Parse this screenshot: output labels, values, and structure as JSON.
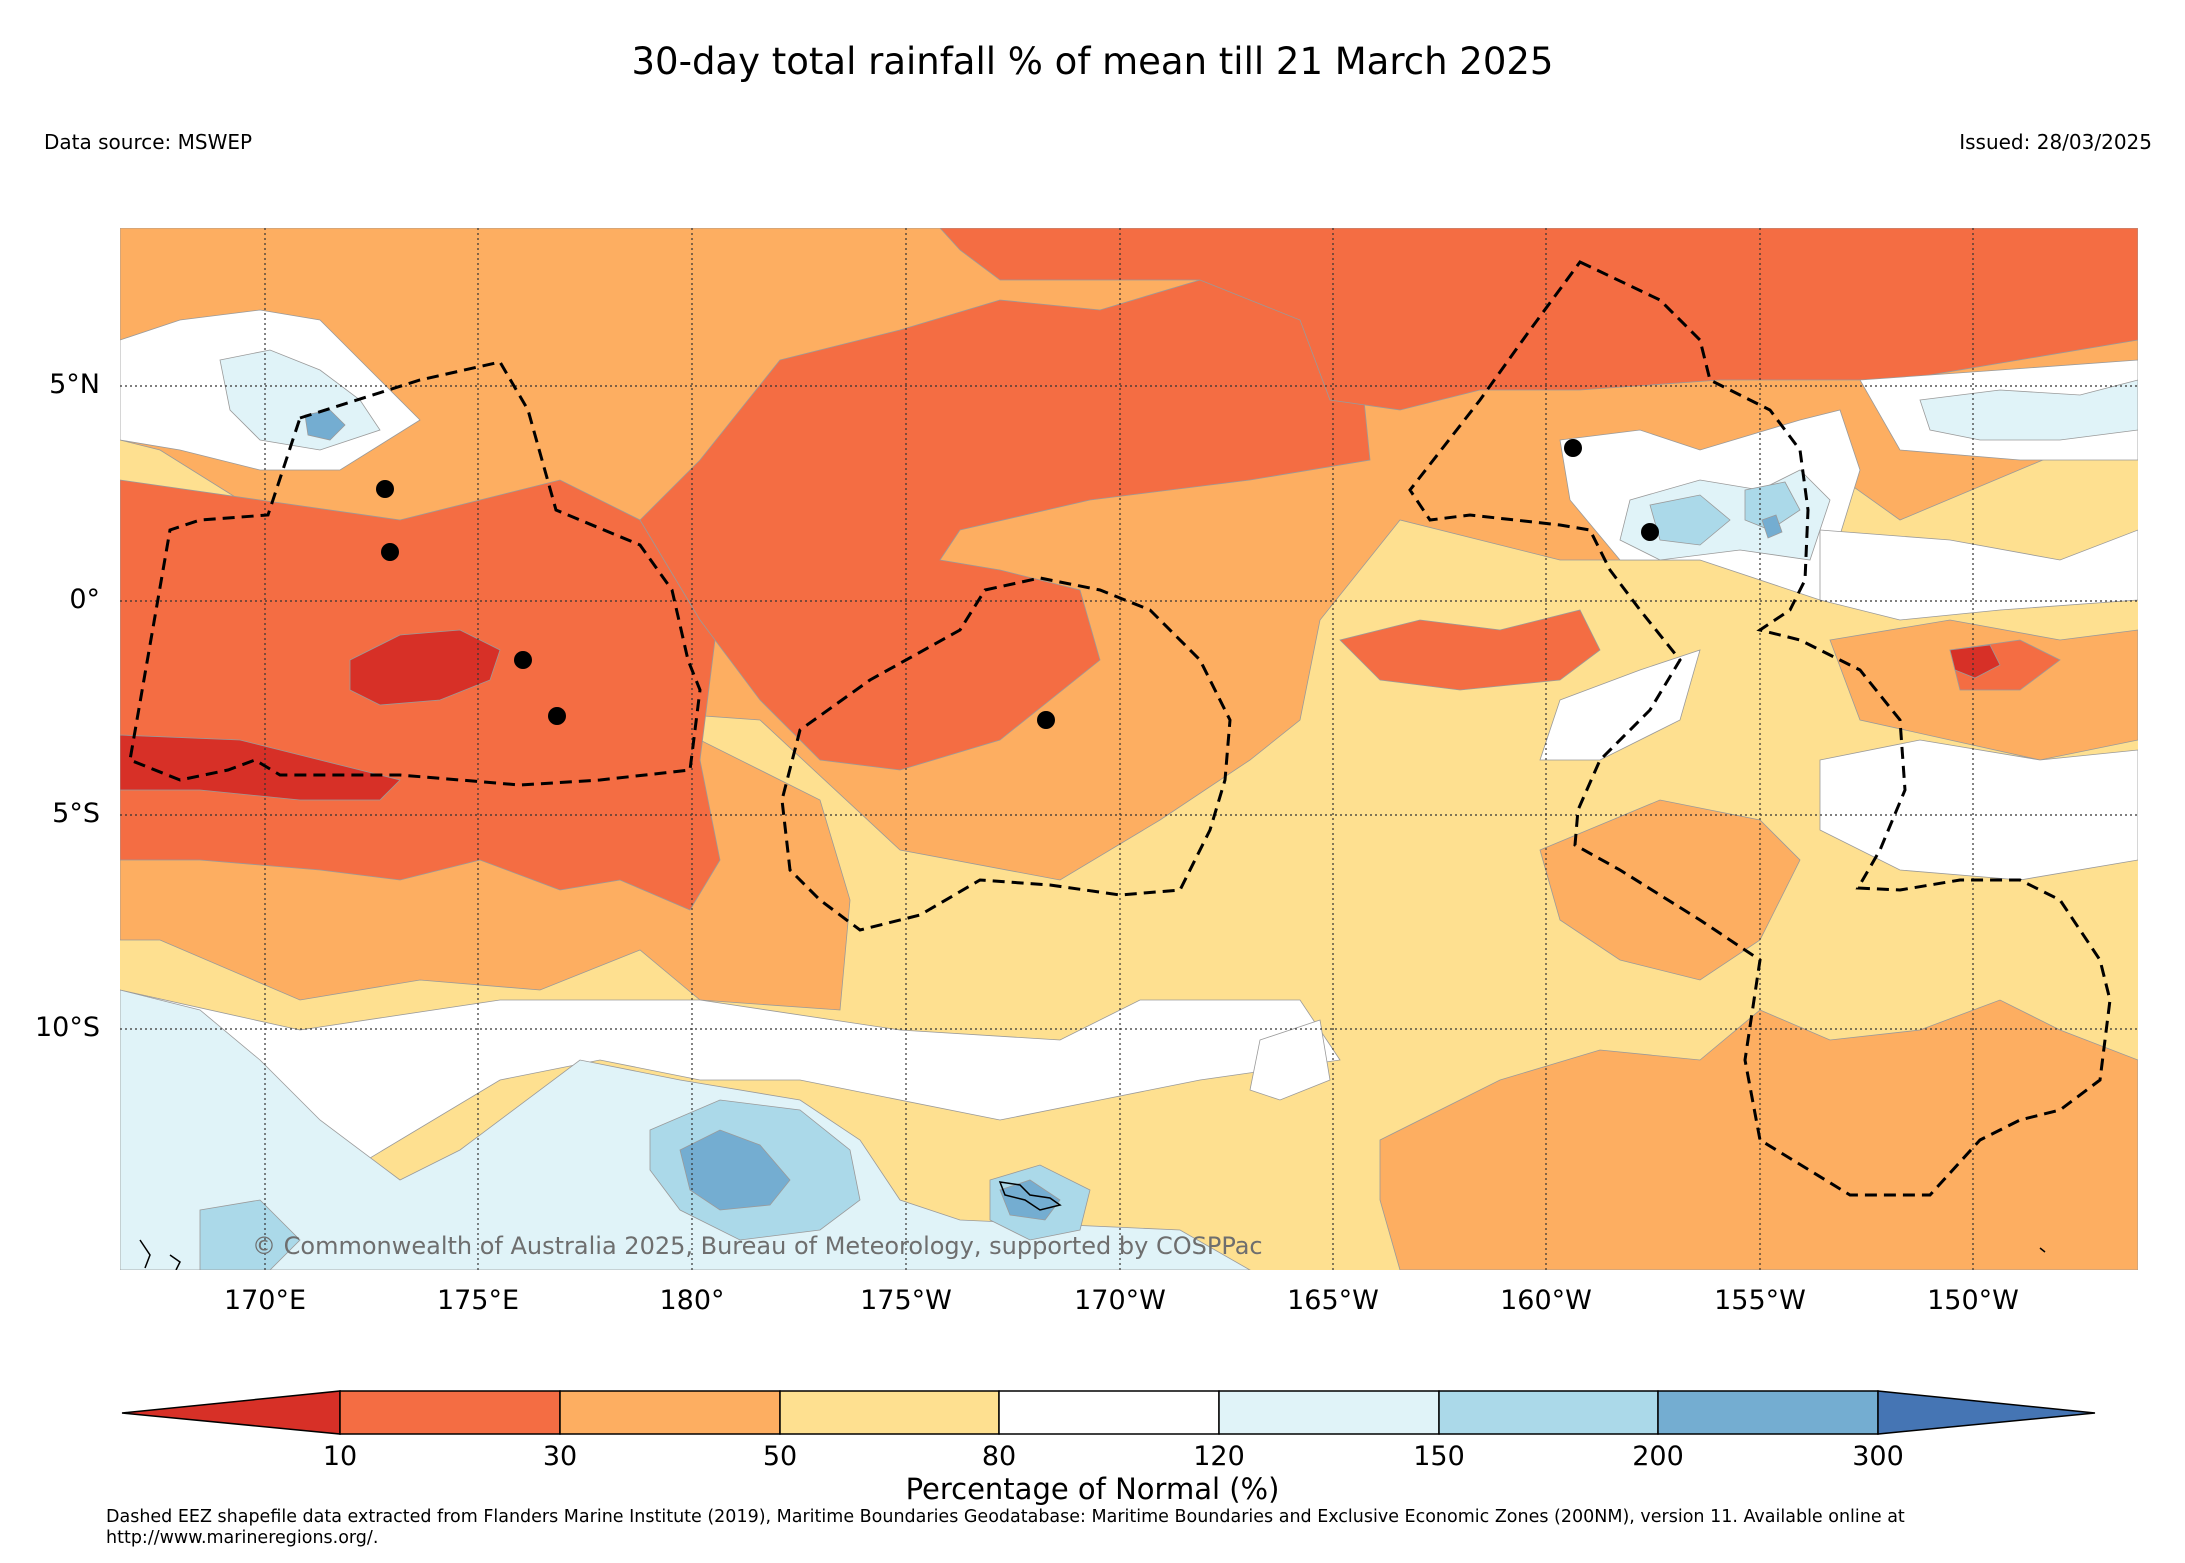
{
  "header": {
    "title": "30-day total rainfall % of mean till 21 March 2025",
    "data_source": "Data source: MSWEP",
    "issued": "Issued: 28/03/2025"
  },
  "map": {
    "lat_labels": [
      "5°N",
      "0°",
      "5°S",
      "10°S"
    ],
    "lon_labels": [
      "170°E",
      "175°E",
      "180°",
      "175°W",
      "170°W",
      "165°W",
      "160°W",
      "155°W",
      "150°W"
    ],
    "copyright": "© Commonwealth of Australia 2025, Bureau of Meteorology, supported by COSPPac",
    "colors": {
      "lt10": "#d73027",
      "r10_30": "#f46d43",
      "r30_50": "#fdae61",
      "r50_80": "#fee090",
      "r80_120": "#ffffff",
      "r120_150": "#e0f3f8",
      "r150_200": "#abd9e9",
      "r200_300": "#74add1",
      "gt300": "#4575b4"
    }
  },
  "colorbar": {
    "tick_labels": [
      "10",
      "30",
      "50",
      "80",
      "120",
      "150",
      "200",
      "300"
    ],
    "title": "Percentage of Normal (%)",
    "colors": [
      "#d73027",
      "#f46d43",
      "#fdae61",
      "#fee090",
      "#ffffff",
      "#e0f3f8",
      "#abd9e9",
      "#74add1",
      "#4575b4"
    ]
  },
  "footnote": "Dashed EEZ shapefile data extracted from Flanders Marine Institute (2019), Maritime Boundaries Geodatabase: Maritime Boundaries and Exclusive Economic Zones (200NM), version 11. Available online at http://www.marineregions.org/."
}
